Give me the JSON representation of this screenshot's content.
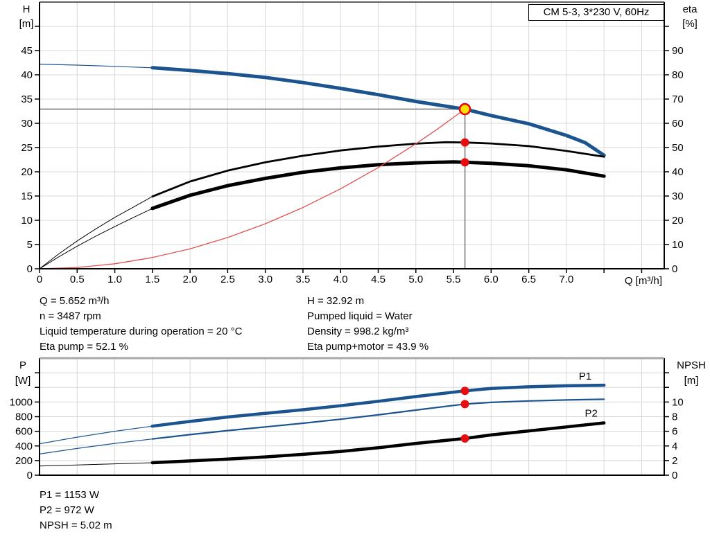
{
  "title_box": "CM 5-3, 3*230 V, 60Hz",
  "axis_labels": {
    "h": [
      "H",
      "[m]"
    ],
    "eta": [
      "eta",
      "[%]"
    ],
    "p": [
      "P",
      "[W]"
    ],
    "npsh": [
      "NPSH",
      "[m]"
    ],
    "q": "Q [m³/h]"
  },
  "info_top_left": [
    "Q = 5.652 m³/h",
    "n = 3487 rpm",
    "Liquid temperature during operation = 20 °C",
    "Eta pump = 52.1 %"
  ],
  "info_top_right": [
    "H = 32.92 m",
    "Pumped liquid = Water",
    "Density = 998.2 kg/m³",
    "Eta pump+motor = 43.9 %"
  ],
  "info_bottom": [
    "P1 = 1153 W",
    "P2 = 972 W",
    "NPSH = 5.02 m"
  ],
  "colors": {
    "curve_blue": "#1c5490",
    "curve_black": "#000000",
    "system_red": "#e05050",
    "grid": "#d8d8d8",
    "duty_line": "#8c8c8c",
    "dot_red": "#e60d0e",
    "duty_fill": "#ffe000",
    "duty_ring": "#e30613",
    "border": "#000000",
    "bottom_chart_top_border": "#a8a8a8"
  },
  "chart_data": [
    {
      "type": "line",
      "title": "CM 5-3, 3*230 V, 60Hz",
      "x_axis": {
        "label": "Q [m³/h]",
        "range": [
          0,
          8.3
        ],
        "grid_step": 0.5,
        "tick_values": [
          0,
          0.5,
          1,
          1.5,
          2,
          2.5,
          3,
          3.5,
          4,
          4.5,
          5,
          5.5,
          6,
          6.5,
          7
        ],
        "tick_labels": [
          "0",
          "0.5",
          "1.0",
          "1.5",
          "2.0",
          "2.5",
          "3.0",
          "3.5",
          "4.0",
          "4.5",
          "5.0",
          "5.5",
          "6.0",
          "6.5",
          "7.0"
        ],
        "minor_ticks": [
          7.5,
          8
        ]
      },
      "y_left": {
        "label": "H [m]",
        "range": [
          0,
          55
        ],
        "grid_step": 5,
        "tick_values": [
          0,
          5,
          10,
          15,
          20,
          25,
          30,
          35,
          40,
          45
        ],
        "tick_labels": [
          "0",
          "5",
          "10",
          "15",
          "20",
          "25",
          "30",
          "35",
          "40",
          "45"
        ],
        "minor_ticks": [
          50
        ]
      },
      "y_right": {
        "label": "eta [%]",
        "range": [
          0,
          110
        ],
        "tick_values": [
          0,
          10,
          20,
          30,
          40,
          50,
          60,
          70,
          80,
          90
        ],
        "tick_labels": [
          "0",
          "10",
          "20",
          "30",
          "40",
          "50",
          "60",
          "70",
          "80",
          "90"
        ],
        "minor_ticks": [
          100
        ]
      },
      "duty_lines": {
        "q": 5.652,
        "h": 32.92
      },
      "series": [
        {
          "name": "qh-curve-thin",
          "axis": "left",
          "color_key": "curve_blue",
          "width": 1.2,
          "points": [
            [
              0,
              42.2
            ],
            [
              0.5,
              42.0
            ],
            [
              1,
              41.75
            ],
            [
              1.5,
              41.45
            ]
          ]
        },
        {
          "name": "qh-curve",
          "axis": "left",
          "color_key": "curve_blue",
          "width": 5,
          "points": [
            [
              1.5,
              41.45
            ],
            [
              2,
              40.9
            ],
            [
              2.5,
              40.25
            ],
            [
              3,
              39.45
            ],
            [
              3.5,
              38.4
            ],
            [
              4,
              37.2
            ],
            [
              4.5,
              35.9
            ],
            [
              5,
              34.5
            ],
            [
              5.652,
              32.92
            ],
            [
              6,
              31.6
            ],
            [
              6.5,
              29.9
            ],
            [
              7,
              27.5
            ],
            [
              7.25,
              26.0
            ],
            [
              7.5,
              23.4
            ]
          ]
        },
        {
          "name": "eta-pump-curve-thin",
          "axis": "right",
          "color_key": "curve_black",
          "width": 1,
          "points": [
            [
              0,
              0
            ],
            [
              0.25,
              6
            ],
            [
              0.5,
              11.5
            ],
            [
              0.75,
              16.5
            ],
            [
              1,
              21.2
            ],
            [
              1.25,
              25.5
            ],
            [
              1.5,
              29.8
            ]
          ]
        },
        {
          "name": "eta-pump-curve",
          "axis": "right",
          "color_key": "curve_black",
          "width": 2.8,
          "points": [
            [
              1.5,
              29.8
            ],
            [
              2,
              36
            ],
            [
              2.5,
              40.5
            ],
            [
              3,
              43.9
            ],
            [
              3.5,
              46.6
            ],
            [
              4,
              48.8
            ],
            [
              4.5,
              50.4
            ],
            [
              5,
              51.6
            ],
            [
              5.4,
              52.2
            ],
            [
              5.652,
              52.1
            ],
            [
              6,
              51.7
            ],
            [
              6.5,
              50.6
            ],
            [
              7,
              48.6
            ],
            [
              7.5,
              46.2
            ]
          ]
        },
        {
          "name": "eta-pump-motor-curve-thin",
          "axis": "right",
          "color_key": "curve_black",
          "width": 1,
          "points": [
            [
              0,
              0
            ],
            [
              0.25,
              4.8
            ],
            [
              0.5,
              9.3
            ],
            [
              0.75,
              13.5
            ],
            [
              1,
              17.4
            ],
            [
              1.25,
              21.2
            ],
            [
              1.5,
              24.9
            ]
          ]
        },
        {
          "name": "eta-pump-motor-curve",
          "axis": "right",
          "color_key": "curve_black",
          "width": 5,
          "points": [
            [
              1.5,
              24.9
            ],
            [
              2,
              30.3
            ],
            [
              2.5,
              34.3
            ],
            [
              3,
              37.3
            ],
            [
              3.5,
              39.8
            ],
            [
              4,
              41.6
            ],
            [
              4.5,
              42.9
            ],
            [
              5,
              43.7
            ],
            [
              5.5,
              44.1
            ],
            [
              5.652,
              43.9
            ],
            [
              6,
              43.5
            ],
            [
              6.5,
              42.5
            ],
            [
              7,
              40.8
            ],
            [
              7.5,
              38.2
            ]
          ]
        },
        {
          "name": "system-curve",
          "axis": "left",
          "color_key": "system_red",
          "width": 1.3,
          "points": [
            [
              0,
              0
            ],
            [
              0.5,
              0.26
            ],
            [
              1,
              1.03
            ],
            [
              1.5,
              2.32
            ],
            [
              2,
              4.12
            ],
            [
              2.5,
              6.44
            ],
            [
              3,
              9.28
            ],
            [
              3.5,
              12.63
            ],
            [
              4,
              16.49
            ],
            [
              4.5,
              20.87
            ],
            [
              5,
              25.77
            ],
            [
              5.3,
              28.96
            ],
            [
              5.652,
              32.92
            ]
          ]
        }
      ],
      "markers": [
        {
          "style": "duty",
          "axis": "left",
          "q": 5.652,
          "v": 32.92,
          "name": "duty-point"
        },
        {
          "style": "dot",
          "axis": "right",
          "q": 5.652,
          "v": 52.1,
          "name": "eta-pump-point"
        },
        {
          "style": "dot",
          "axis": "right",
          "q": 5.652,
          "v": 43.9,
          "name": "eta-pump-motor-point"
        }
      ]
    },
    {
      "type": "line",
      "x_axis": {
        "label": "",
        "range": [
          0,
          8.3
        ],
        "grid_step": 0.5,
        "tick_values": [],
        "tick_labels": [],
        "minor_ticks": []
      },
      "y_left": {
        "label": "P [W]",
        "range": [
          0,
          1600
        ],
        "grid_step": 200,
        "tick_values": [
          0,
          200,
          400,
          600,
          800,
          1000
        ],
        "tick_labels": [
          "0",
          "200",
          "400",
          "600",
          "800",
          "1000"
        ],
        "minor_ticks": [
          1200,
          1400
        ]
      },
      "y_right": {
        "label": "NPSH [m]",
        "range": [
          0,
          16
        ],
        "tick_values": [
          0,
          2,
          4,
          6,
          8,
          10
        ],
        "tick_labels": [
          "0",
          "2",
          "4",
          "6",
          "8",
          "10"
        ],
        "minor_ticks": [
          12,
          14
        ]
      },
      "series": [
        {
          "name": "p1-curve-thin",
          "axis": "left",
          "color_key": "curve_blue",
          "width": 1.2,
          "points": [
            [
              0,
              430
            ],
            [
              0.5,
              520
            ],
            [
              1,
              600
            ],
            [
              1.5,
              670
            ]
          ]
        },
        {
          "name": "p1-curve",
          "axis": "left",
          "color_key": "curve_blue",
          "width": 4.5,
          "end_label": {
            "text": "P1",
            "q": 7.25,
            "v": 1355
          },
          "points": [
            [
              1.5,
              670
            ],
            [
              2,
              735
            ],
            [
              2.5,
              795
            ],
            [
              3,
              845
            ],
            [
              3.5,
              895
            ],
            [
              4,
              950
            ],
            [
              4.5,
              1010
            ],
            [
              5,
              1075
            ],
            [
              5.652,
              1153
            ],
            [
              6,
              1185
            ],
            [
              6.5,
              1208
            ],
            [
              7,
              1222
            ],
            [
              7.5,
              1230
            ]
          ]
        },
        {
          "name": "p2-curve-thin",
          "axis": "left",
          "color_key": "curve_blue",
          "width": 1.2,
          "points": [
            [
              0,
              290
            ],
            [
              0.5,
              365
            ],
            [
              1,
              435
            ],
            [
              1.5,
              495
            ]
          ]
        },
        {
          "name": "p2-curve",
          "axis": "left",
          "color_key": "curve_blue",
          "width": 2.2,
          "end_label": {
            "text": "P2",
            "q": 7.33,
            "v": 845
          },
          "points": [
            [
              1.5,
              495
            ],
            [
              2,
              555
            ],
            [
              2.5,
              610
            ],
            [
              3,
              660
            ],
            [
              3.5,
              710
            ],
            [
              4,
              765
            ],
            [
              4.5,
              825
            ],
            [
              5,
              890
            ],
            [
              5.652,
              972
            ],
            [
              6,
              995
            ],
            [
              6.5,
              1015
            ],
            [
              7,
              1028
            ],
            [
              7.5,
              1038
            ]
          ]
        },
        {
          "name": "npsh-curve-thin",
          "axis": "right",
          "color_key": "curve_black",
          "width": 1,
          "points": [
            [
              0,
              1.25
            ],
            [
              0.5,
              1.4
            ],
            [
              1,
              1.55
            ],
            [
              1.5,
              1.7
            ]
          ]
        },
        {
          "name": "npsh-curve",
          "axis": "right",
          "color_key": "curve_black",
          "width": 4.5,
          "points": [
            [
              1.5,
              1.7
            ],
            [
              2,
              1.95
            ],
            [
              2.5,
              2.2
            ],
            [
              3,
              2.5
            ],
            [
              3.5,
              2.85
            ],
            [
              4,
              3.25
            ],
            [
              4.5,
              3.75
            ],
            [
              5,
              4.35
            ],
            [
              5.652,
              5.02
            ],
            [
              6,
              5.5
            ],
            [
              6.5,
              6.05
            ],
            [
              7,
              6.6
            ],
            [
              7.5,
              7.15
            ]
          ]
        }
      ],
      "markers": [
        {
          "style": "dot",
          "axis": "left",
          "q": 5.652,
          "v": 1153,
          "name": "p1-point"
        },
        {
          "style": "dot",
          "axis": "left",
          "q": 5.652,
          "v": 972,
          "name": "p2-point"
        },
        {
          "style": "dot",
          "axis": "right",
          "q": 5.652,
          "v": 5.02,
          "name": "npsh-point"
        }
      ]
    }
  ]
}
